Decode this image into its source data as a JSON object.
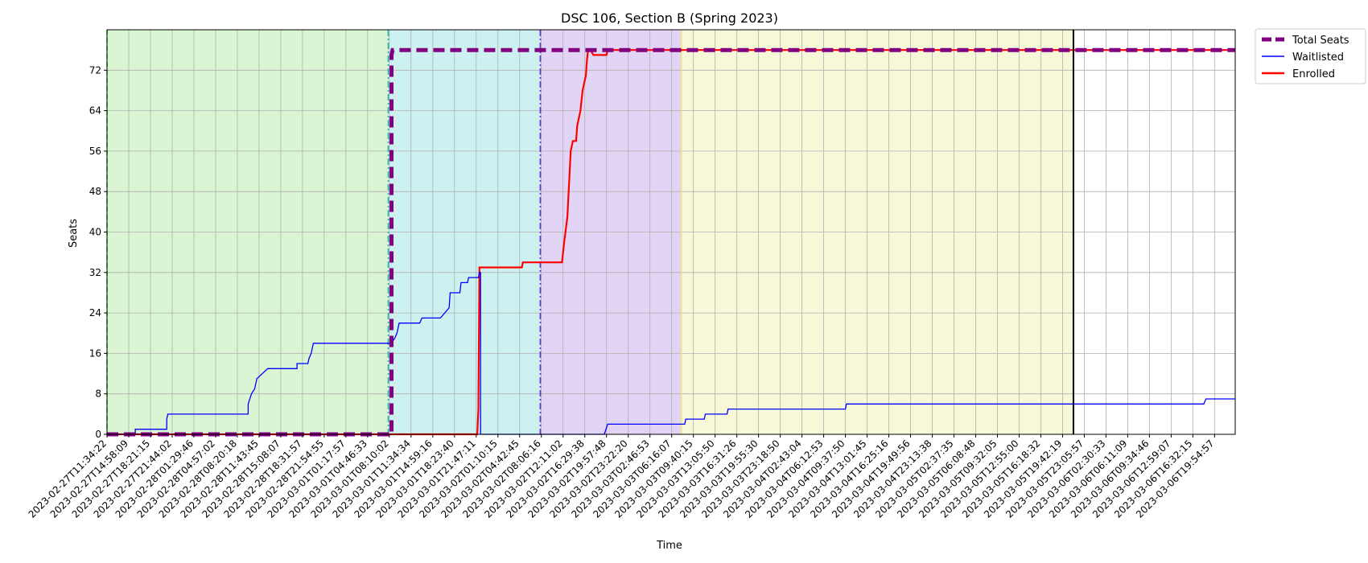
{
  "chart_data": {
    "type": "line",
    "title": "DSC 106, Section B (Spring 2023)",
    "xlabel": "Time",
    "ylabel": "Seats",
    "ylim": [
      0,
      80
    ],
    "yticks": [
      0,
      8,
      16,
      24,
      32,
      40,
      48,
      56,
      64,
      72
    ],
    "grid": true,
    "legend_position": "outside top-right",
    "x_tick_labels": [
      "2023-02-27T11:34:22",
      "2023-02-27T14:58:09",
      "2023-02-27T18:21:15",
      "2023-02-27T21:44:02",
      "2023-02-28T01:29:46",
      "2023-02-28T04:57:02",
      "2023-02-28T08:20:18",
      "2023-02-28T11:43:45",
      "2023-02-28T15:08:07",
      "2023-02-28T18:31:57",
      "2023-02-28T21:54:55",
      "2023-03-01T01:17:57",
      "2023-03-01T04:46:33",
      "2023-03-01T08:10:02",
      "2023-03-01T11:34:34",
      "2023-03-01T14:59:16",
      "2023-03-01T18:23:40",
      "2023-03-01T21:47:11",
      "2023-03-02T01:10:15",
      "2023-03-02T04:42:45",
      "2023-03-02T08:06:16",
      "2023-03-02T12:11:02",
      "2023-03-02T16:29:38",
      "2023-03-02T19:57:48",
      "2023-03-02T23:22:20",
      "2023-03-03T02:46:53",
      "2023-03-03T06:16:07",
      "2023-03-03T09:40:15",
      "2023-03-03T13:05:50",
      "2023-03-03T16:31:26",
      "2023-03-03T19:55:30",
      "2023-03-03T23:18:50",
      "2023-03-04T02:43:04",
      "2023-03-04T06:12:53",
      "2023-03-04T09:37:50",
      "2023-03-04T13:01:45",
      "2023-03-04T16:25:16",
      "2023-03-04T19:49:56",
      "2023-03-04T23:13:38",
      "2023-03-05T02:37:35",
      "2023-03-05T06:08:48",
      "2023-03-05T09:32:05",
      "2023-03-05T12:55:00",
      "2023-03-05T16:18:32",
      "2023-03-05T19:42:19",
      "2023-03-05T23:05:57",
      "2023-03-06T02:30:33",
      "2023-03-06T06:11:09",
      "2023-03-06T09:34:46",
      "2023-03-06T12:59:07",
      "2023-03-06T16:32:15",
      "2023-03-06T19:54:57"
    ],
    "x_range": [
      0,
      51.95
    ],
    "phases": [
      {
        "name": "phase-1",
        "from": 0,
        "to": 12.95,
        "fill": "#d9f5d3",
        "line_color": "#32cd32",
        "line_style": "dashed"
      },
      {
        "name": "phase-2",
        "from": 12.95,
        "to": 19.95,
        "fill": "#cdf1f1",
        "line_color": "#20b2aa",
        "line_style": "dashdot"
      },
      {
        "name": "phase-3",
        "from": 19.95,
        "to": 26.45,
        "fill": "#e2d4f5",
        "line_color": "#6a2bd4",
        "line_style": "dashdot"
      },
      {
        "name": "phase-4",
        "from": 26.45,
        "to": 44.5,
        "fill": "#f7f8d8",
        "line_color": "#f0e68c",
        "line_style": "solid"
      }
    ],
    "current_marker_x": 44.5,
    "series": [
      {
        "name": "Total Seats",
        "color": "#800080",
        "style": "dashed",
        "points": [
          [
            0,
            0
          ],
          [
            13.1,
            0
          ],
          [
            13.1,
            75
          ],
          [
            13.15,
            76
          ],
          [
            51.95,
            76
          ]
        ]
      },
      {
        "name": "Waitlisted",
        "color": "#0000ff",
        "style": "solid",
        "points": [
          [
            0,
            0
          ],
          [
            1.3,
            0
          ],
          [
            1.3,
            1
          ],
          [
            2.75,
            1
          ],
          [
            2.75,
            3
          ],
          [
            2.8,
            4
          ],
          [
            6.5,
            4
          ],
          [
            6.5,
            6
          ],
          [
            6.65,
            8
          ],
          [
            6.8,
            9
          ],
          [
            6.9,
            11
          ],
          [
            7.4,
            13
          ],
          [
            8.75,
            13
          ],
          [
            8.75,
            14
          ],
          [
            9.25,
            14
          ],
          [
            9.3,
            15
          ],
          [
            9.4,
            16
          ],
          [
            9.5,
            18
          ],
          [
            12.95,
            18
          ],
          [
            13.1,
            18
          ],
          [
            13.25,
            19
          ],
          [
            13.35,
            20
          ],
          [
            13.45,
            22
          ],
          [
            14.4,
            22
          ],
          [
            14.5,
            23
          ],
          [
            15.35,
            23
          ],
          [
            15.55,
            24
          ],
          [
            15.75,
            25
          ],
          [
            15.8,
            28
          ],
          [
            16.25,
            28
          ],
          [
            16.3,
            30
          ],
          [
            16.6,
            30
          ],
          [
            16.65,
            31
          ],
          [
            17.1,
            31
          ],
          [
            17.15,
            32
          ],
          [
            17.2,
            32
          ],
          [
            17.2,
            0
          ],
          [
            22.9,
            0
          ],
          [
            23.05,
            2
          ],
          [
            26.6,
            2
          ],
          [
            26.65,
            3
          ],
          [
            27.5,
            3
          ],
          [
            27.55,
            4
          ],
          [
            28.55,
            4
          ],
          [
            28.6,
            5
          ],
          [
            34,
            5
          ],
          [
            34.05,
            6
          ],
          [
            50.5,
            6
          ],
          [
            50.6,
            7
          ],
          [
            51.95,
            7
          ]
        ]
      },
      {
        "name": "Enrolled",
        "color": "#ff0000",
        "style": "solid",
        "points": [
          [
            0,
            0
          ],
          [
            17.05,
            0
          ],
          [
            17.1,
            5
          ],
          [
            17.15,
            33
          ],
          [
            19.1,
            33
          ],
          [
            19.15,
            34
          ],
          [
            20.95,
            34
          ],
          [
            21.05,
            38
          ],
          [
            21.2,
            43
          ],
          [
            21.35,
            56
          ],
          [
            21.45,
            58
          ],
          [
            21.6,
            58
          ],
          [
            21.65,
            61
          ],
          [
            21.8,
            64
          ],
          [
            21.9,
            68
          ],
          [
            22.05,
            71
          ],
          [
            22.1,
            74
          ],
          [
            22.15,
            76
          ],
          [
            22.25,
            76
          ],
          [
            22.4,
            75
          ],
          [
            23,
            75
          ],
          [
            23.05,
            76
          ],
          [
            51.95,
            76
          ]
        ]
      }
    ]
  }
}
